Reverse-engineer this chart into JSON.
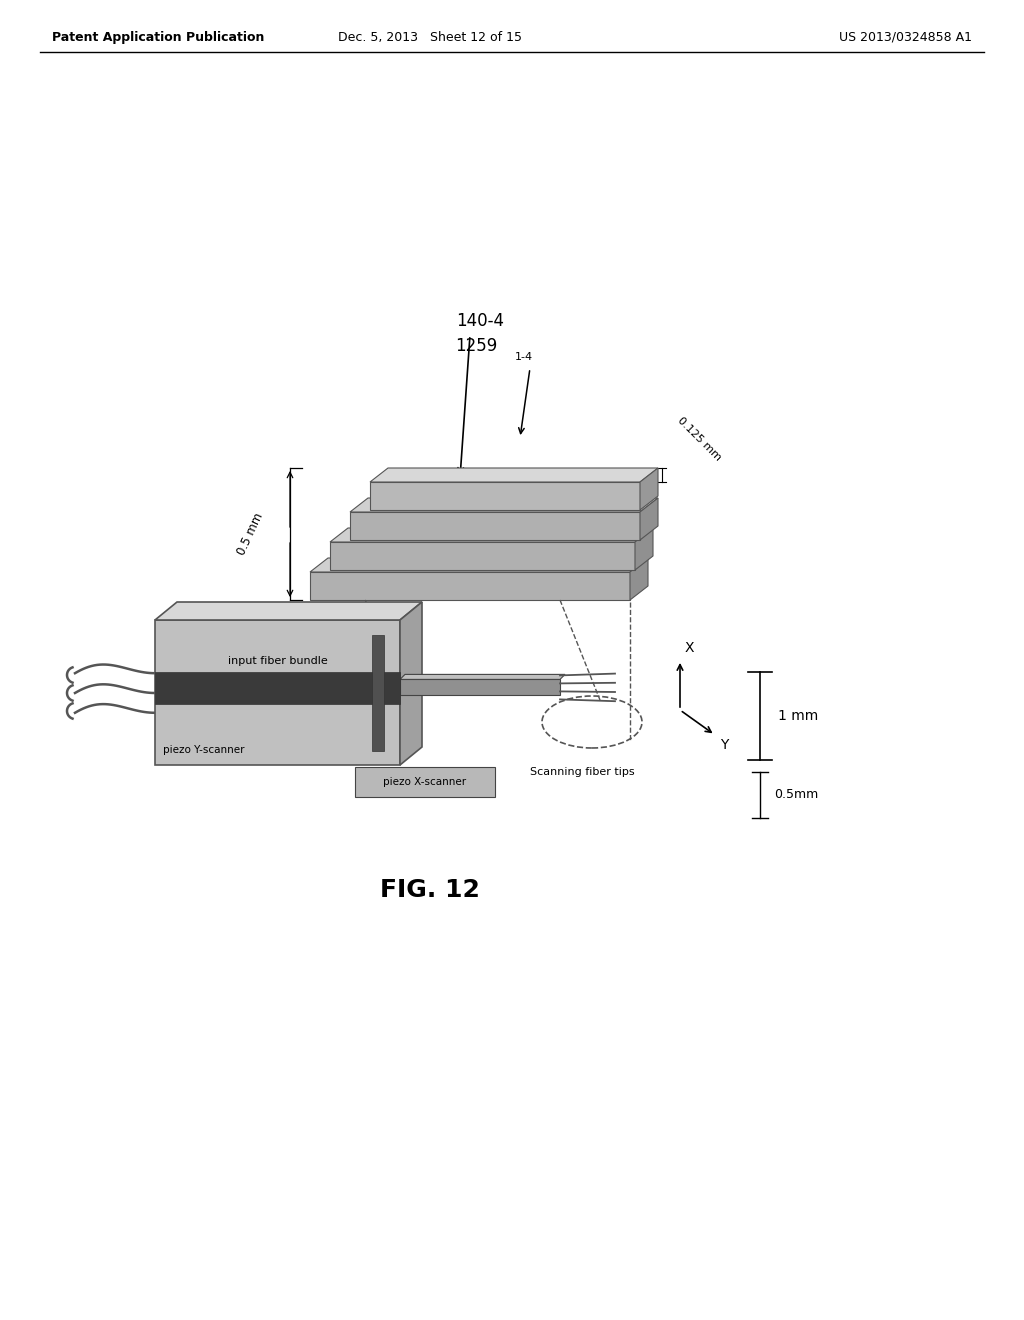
{
  "bg_color": "#ffffff",
  "header_left": "Patent Application Publication",
  "header_mid": "Dec. 5, 2013   Sheet 12 of 15",
  "header_right": "US 2013/0324858 A1",
  "fig_label": "FIG. 12",
  "label_140_4": "140-4",
  "label_1259": "1259",
  "label_1_4": "1-4",
  "label_0_5mm_top": "0.5 mm",
  "label_0_125mm": "0.125 mm",
  "label_1mm": "1 mm",
  "label_0_5mm_bot": "0.5mm",
  "label_input_fiber": "input fiber bundle",
  "label_piezo_y": "piezo Y-scanner",
  "label_piezo_x": "piezo X-scanner",
  "label_scanning": "Scanning fiber tips"
}
